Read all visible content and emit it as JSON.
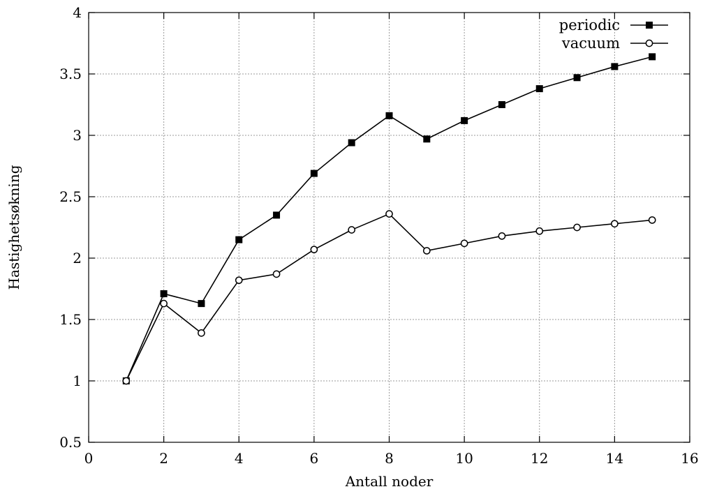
{
  "chart_data": {
    "type": "line",
    "title": "",
    "xlabel": "Antall noder",
    "ylabel": "Hastighetsøkning",
    "xlim": [
      0,
      16
    ],
    "ylim": [
      0.5,
      4
    ],
    "xticks": [
      0,
      2,
      4,
      6,
      8,
      10,
      12,
      14,
      16
    ],
    "yticks": [
      0.5,
      1,
      1.5,
      2,
      2.5,
      3,
      3.5,
      4
    ],
    "xtick_labels": [
      "0",
      "2",
      "4",
      "6",
      "8",
      "10",
      "12",
      "14",
      "16"
    ],
    "ytick_labels": [
      "0.5",
      "1",
      "1.5",
      "2",
      "2.5",
      "3",
      "3.5",
      "4"
    ],
    "grid": true,
    "legend_position": "top-right",
    "x": [
      1,
      2,
      3,
      4,
      5,
      6,
      7,
      8,
      9,
      10,
      11,
      12,
      13,
      14,
      15
    ],
    "series": [
      {
        "name": "periodic",
        "marker": "filled-square",
        "color": "#000000",
        "values": [
          1.0,
          1.71,
          1.63,
          2.15,
          2.35,
          2.69,
          2.94,
          3.16,
          2.97,
          3.12,
          3.25,
          3.38,
          3.47,
          3.56,
          3.64
        ]
      },
      {
        "name": "vacuum",
        "marker": "open-circle",
        "color": "#000000",
        "values": [
          1.0,
          1.63,
          1.39,
          1.82,
          1.87,
          2.07,
          2.23,
          2.36,
          2.06,
          2.12,
          2.18,
          2.22,
          2.25,
          2.28,
          2.31
        ]
      }
    ]
  }
}
